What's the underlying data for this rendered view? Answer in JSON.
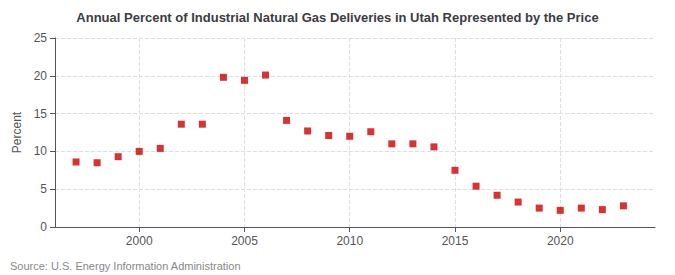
{
  "chart_data": {
    "type": "scatter",
    "title": "Annual Percent of Industrial Natural Gas Deliveries in Utah Represented by the Price",
    "ylabel": "Percent",
    "annotations": [
      "Source: U.S. Energy Information Administration"
    ],
    "x": [
      1997,
      1998,
      1999,
      2000,
      2001,
      2002,
      2003,
      2004,
      2005,
      2006,
      2007,
      2008,
      2009,
      2010,
      2011,
      2012,
      2013,
      2014,
      2015,
      2016,
      2017,
      2018,
      2019,
      2020,
      2021,
      2022,
      2023
    ],
    "values": [
      8.6,
      8.5,
      9.3,
      10.0,
      10.4,
      13.6,
      13.6,
      19.8,
      19.4,
      20.1,
      14.1,
      12.7,
      12.1,
      12.0,
      12.6,
      11.0,
      11.0,
      10.6,
      7.5,
      5.4,
      4.2,
      3.3,
      2.5,
      2.2,
      2.5,
      2.3,
      2.8
    ],
    "color": "#cc0000",
    "marker": "square",
    "xlim": [
      1996,
      2024.5
    ],
    "xticks": [
      2000,
      2005,
      2010,
      2015,
      2020
    ],
    "ylim": [
      0,
      25
    ],
    "yticks": [
      0,
      5,
      10,
      15,
      20,
      25
    ],
    "grid": true
  }
}
